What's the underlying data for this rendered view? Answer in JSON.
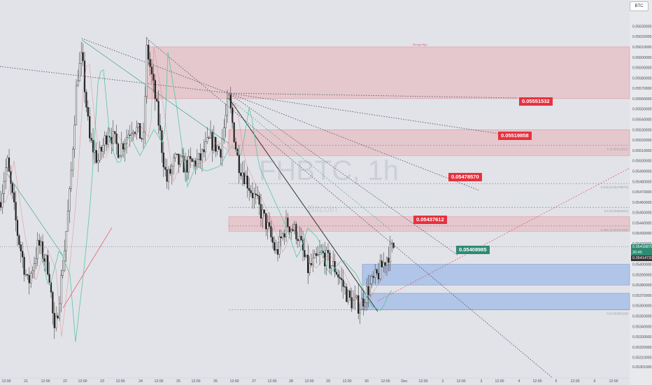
{
  "symbol": "BTC",
  "watermark": "FHBTC, 1h",
  "watermark_sub": "Bitcoin",
  "colors": {
    "background": "#e1e3e8",
    "up": "#1f1f1f",
    "down": "#1f1f1f",
    "resistance_zone": "#e9a6b0",
    "support_zone": "#8fb0e6",
    "red_tag": "#e5323f",
    "green_tag": "#2e8b73",
    "ema": "#5cc4a0",
    "ma": "#e07070"
  },
  "chart_data": {
    "type": "candlestick",
    "title": "FHBTC, 1h",
    "ylim": [
      0.05301,
      0.05635
    ],
    "y_ticks": [
      "0.05630000",
      "0.05620000",
      "0.05610000",
      "0.05600000",
      "0.05590000",
      "0.05580000",
      "0.05570000",
      "0.05560000",
      "0.05550000",
      "0.05540000",
      "0.05530000",
      "0.05520000",
      "0.05510000",
      "0.05500000",
      "0.05490000",
      "0.05480000",
      "0.05470000",
      "0.05460000",
      "0.05450000",
      "0.05440000",
      "0.05430000",
      "0.05420000",
      "0.05410000",
      "0.05400000",
      "0.05390000",
      "0.05380000",
      "0.05370000",
      "0.05360000",
      "0.05350000",
      "0.05340000",
      "0.05330000",
      "0.05320000",
      "0.05310000",
      "0.05301000"
    ],
    "x_ticks": [
      "12:00",
      "21",
      "12:00",
      "22",
      "12:00",
      "23",
      "12:00",
      "24",
      "12:00",
      "25",
      "12:00",
      "26",
      "12:00",
      "27",
      "12:00",
      "28",
      "12:00",
      "29",
      "12:00",
      "30",
      "12:00",
      "Dec",
      "12:00",
      "2",
      "12:00",
      "3",
      "12:00",
      "4",
      "12:00",
      "5",
      "12:00",
      "6",
      "12:00"
    ],
    "last_price": "0.05416879",
    "last_price_time": "26:45",
    "ema_price": "0.05414733",
    "price_labels": [
      {
        "text": "0.05551532",
        "price": 0.05553,
        "color": "red"
      },
      {
        "text": "0.05519858",
        "price": 0.0552,
        "color": "red"
      },
      {
        "text": "0.05478570",
        "price": 0.0548,
        "color": "red"
      },
      {
        "text": "0.05437612",
        "price": 0.05439,
        "color": "red"
      },
      {
        "text": "0.05408985",
        "price": 0.0541,
        "color": "green"
      }
    ],
    "resistance_zones": [
      {
        "top": 0.0561,
        "bottom": 0.0556
      },
      {
        "top": 0.0553,
        "bottom": 0.05505
      },
      {
        "top": 0.05446,
        "bottom": 0.05432
      }
    ],
    "support_zones": [
      {
        "top": 0.054,
        "bottom": 0.0538
      },
      {
        "top": 0.05372,
        "bottom": 0.05356
      }
    ],
    "fib_levels": [
      {
        "label": "1 (0.05514661)",
        "price": 0.05515
      },
      {
        "label": "0.618 (0.05478070)",
        "price": 0.05478
      },
      {
        "label": "0.5 (0.05454912)",
        "price": 0.05455
      },
      {
        "label": "0.382 (0.05437006)",
        "price": 0.05437
      },
      {
        "label": "0 (0.05356100)",
        "price": 0.05356
      }
    ],
    "zone_label": "Strong High"
  }
}
